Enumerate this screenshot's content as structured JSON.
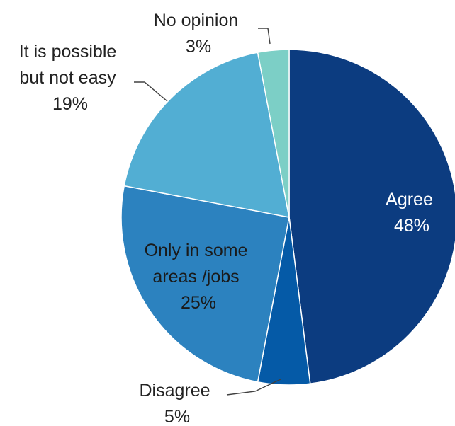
{
  "chart_data": {
    "type": "pie",
    "title": "",
    "slices": [
      {
        "label_lines": [
          "Agree"
        ],
        "value_text": "48%",
        "value": 48,
        "color": "#0c3c80",
        "text_color": "#ffffff"
      },
      {
        "label_lines": [
          "Disagree"
        ],
        "value_text": "5%",
        "value": 5,
        "color": "#055aa7",
        "text_color": "#222222"
      },
      {
        "label_lines": [
          "Only in some",
          "areas /jobs"
        ],
        "value_text": "25%",
        "value": 25,
        "color": "#2c82bf",
        "text_color": "#1a1a1a"
      },
      {
        "label_lines": [
          "It is possible",
          "but not easy"
        ],
        "value_text": "19%",
        "value": 19,
        "color": "#52aed3",
        "text_color": "#222222"
      },
      {
        "label_lines": [
          "No opinion"
        ],
        "value_text": "3%",
        "value": 3,
        "color": "#7ccfc6",
        "text_color": "#222222"
      }
    ]
  }
}
